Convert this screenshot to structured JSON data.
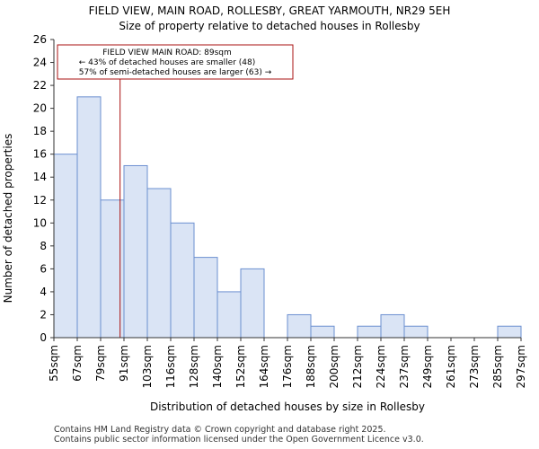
{
  "chart_data": {
    "type": "bar",
    "title": "FIELD VIEW, MAIN ROAD, ROLLESBY, GREAT YARMOUTH, NR29 5EH",
    "subtitle": "Size of property relative to detached houses in Rollesby",
    "xlabel": "Distribution of detached houses by size in Rollesby",
    "ylabel": "Number of detached properties",
    "bin_edges": [
      "55sqm",
      "67sqm",
      "79sqm",
      "91sqm",
      "103sqm",
      "116sqm",
      "128sqm",
      "140sqm",
      "152sqm",
      "164sqm",
      "176sqm",
      "188sqm",
      "200sqm",
      "212sqm",
      "224sqm",
      "237sqm",
      "249sqm",
      "261sqm",
      "273sqm",
      "285sqm",
      "297sqm"
    ],
    "values": [
      16,
      21,
      12,
      15,
      13,
      10,
      7,
      4,
      6,
      0,
      2,
      1,
      0,
      1,
      2,
      1,
      0,
      0,
      0,
      1
    ],
    "ylim": [
      0,
      26
    ],
    "yticks": [
      0,
      2,
      4,
      6,
      8,
      10,
      12,
      14,
      16,
      18,
      20,
      22,
      24,
      26
    ],
    "bar_color": "#dae4f5",
    "bar_edge_color": "#6b8fd0",
    "marker_value_sqm": 89,
    "marker_color": "#aa1111",
    "annotation": {
      "line1": "FIELD VIEW MAIN ROAD: 89sqm",
      "line2": "← 43% of detached houses are smaller (48)",
      "line3": "57% of semi-detached houses are larger (63) →"
    }
  },
  "footer": {
    "line1": "Contains HM Land Registry data © Crown copyright and database right 2025.",
    "line2": "Contains public sector information licensed under the Open Government Licence v3.0."
  }
}
